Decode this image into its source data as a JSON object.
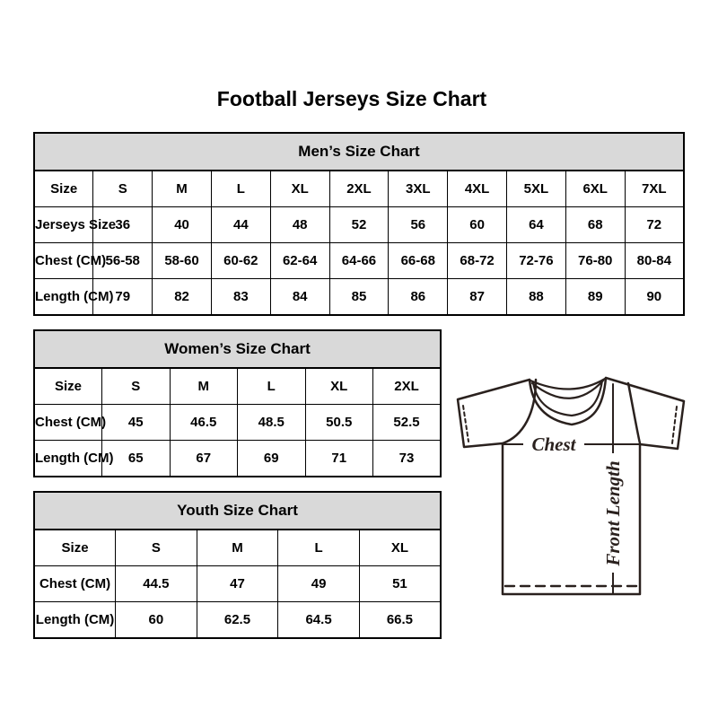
{
  "title": "Football Jerseys Size Chart",
  "colors": {
    "table_header_bg": "#d9d9d9",
    "table_border": "#000000",
    "text": "#000000",
    "diagram_line": "#2a211e",
    "background": "#ffffff"
  },
  "diagram": {
    "chest_label": "Chest",
    "front_length_label": "Front Length"
  },
  "chart_data": [
    {
      "type": "table",
      "title": "Men’s Size Chart",
      "rows": [
        {
          "label": "Size",
          "values": [
            "S",
            "M",
            "L",
            "XL",
            "2XL",
            "3XL",
            "4XL",
            "5XL",
            "6XL",
            "7XL"
          ]
        },
        {
          "label": "Jerseys Size",
          "values": [
            "36",
            "40",
            "44",
            "48",
            "52",
            "56",
            "60",
            "64",
            "68",
            "72"
          ]
        },
        {
          "label": "Chest (CM)",
          "values": [
            "56-58",
            "58-60",
            "60-62",
            "62-64",
            "64-66",
            "66-68",
            "68-72",
            "72-76",
            "76-80",
            "80-84"
          ]
        },
        {
          "label": "Length (CM)",
          "values": [
            "79",
            "82",
            "83",
            "84",
            "85",
            "86",
            "87",
            "88",
            "89",
            "90"
          ]
        }
      ]
    },
    {
      "type": "table",
      "title": "Women’s Size Chart",
      "rows": [
        {
          "label": "Size",
          "values": [
            "S",
            "M",
            "L",
            "XL",
            "2XL"
          ]
        },
        {
          "label": "Chest (CM)",
          "values": [
            "45",
            "46.5",
            "48.5",
            "50.5",
            "52.5"
          ]
        },
        {
          "label": "Length (CM)",
          "values": [
            "65",
            "67",
            "69",
            "71",
            "73"
          ]
        }
      ]
    },
    {
      "type": "table",
      "title": "Youth Size Chart",
      "rows": [
        {
          "label": "Size",
          "values": [
            "S",
            "M",
            "L",
            "XL"
          ]
        },
        {
          "label": "Chest (CM)",
          "values": [
            "44.5",
            "47",
            "49",
            "51"
          ]
        },
        {
          "label": "Length (CM)",
          "values": [
            "60",
            "62.5",
            "64.5",
            "66.5"
          ]
        }
      ]
    }
  ]
}
